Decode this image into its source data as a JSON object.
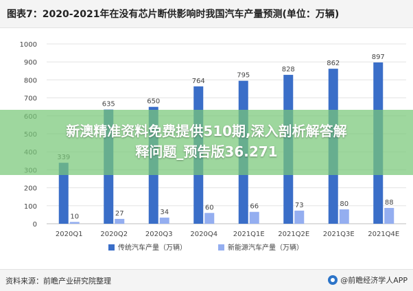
{
  "header": {
    "title": "图表7：2020-2021年在没有芯片断供影响时我国汽车产量预测(单位：万辆)"
  },
  "chart_data": {
    "type": "bar",
    "categories": [
      "2020Q1",
      "2020Q2",
      "2020Q3",
      "2020Q4",
      "2021Q1E",
      "2021Q2E",
      "2021Q3E",
      "2021Q4E"
    ],
    "series": [
      {
        "name": "传统汽车产量（万辆）",
        "values": [
          339,
          635,
          650,
          764,
          795,
          828,
          862,
          897
        ],
        "color": "#3a6ec8"
      },
      {
        "name": "新能源汽车产量（万辆）",
        "values": [
          10,
          27,
          34,
          60,
          66,
          73,
          80,
          88
        ],
        "color": "#94aef0"
      }
    ],
    "yticks": [
      0,
      100,
      200,
      300,
      400,
      500,
      600,
      700,
      800,
      900,
      1000
    ],
    "ylim": [
      0,
      1000
    ],
    "legend_position": "bottom",
    "grid": true
  },
  "overlay": {
    "line1": "新澳精准资料免费提供510期,深入剖析解答解",
    "line2": "释问题_预告版36.271"
  },
  "footer": {
    "source": "资料来源：前瞻产业研究院整理",
    "brand": "@前瞻经济学人APP"
  }
}
